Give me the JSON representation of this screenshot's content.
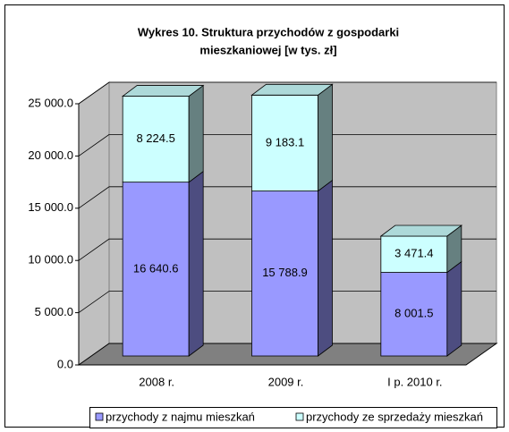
{
  "chart_data": {
    "type": "bar3d_stacked",
    "title": [
      "Wykres 10. Struktura przychodów z gospodarki",
      "mieszkaniowej [w tys. zł]"
    ],
    "categories": [
      "2008 r.",
      "2009 r.",
      "I p. 2010 r."
    ],
    "series": [
      {
        "name": "przychody z najmu mieszkań",
        "color": "#9999ff",
        "values": [
          16640.6,
          15788.9,
          8001.5
        ],
        "value_labels": [
          "16 640.6",
          "15 788.9",
          "8 001.5"
        ]
      },
      {
        "name": "przychody ze sprzedaży mieszkań",
        "color": "#ccffff",
        "values": [
          8224.5,
          9183.1,
          3471.4
        ],
        "value_labels": [
          "8 224.5",
          "9 183.1",
          "3 471.4"
        ]
      }
    ],
    "ylim": [
      0,
      25000
    ],
    "yticks": [
      {
        "value": 0,
        "label": "0.0"
      },
      {
        "value": 5000,
        "label": "5 000.0"
      },
      {
        "value": 10000,
        "label": "10 000.0"
      },
      {
        "value": 15000,
        "label": "15 000.0"
      },
      {
        "value": 20000,
        "label": "20 000.0"
      },
      {
        "value": 25000,
        "label": "25 000.0"
      }
    ],
    "grid": true
  }
}
